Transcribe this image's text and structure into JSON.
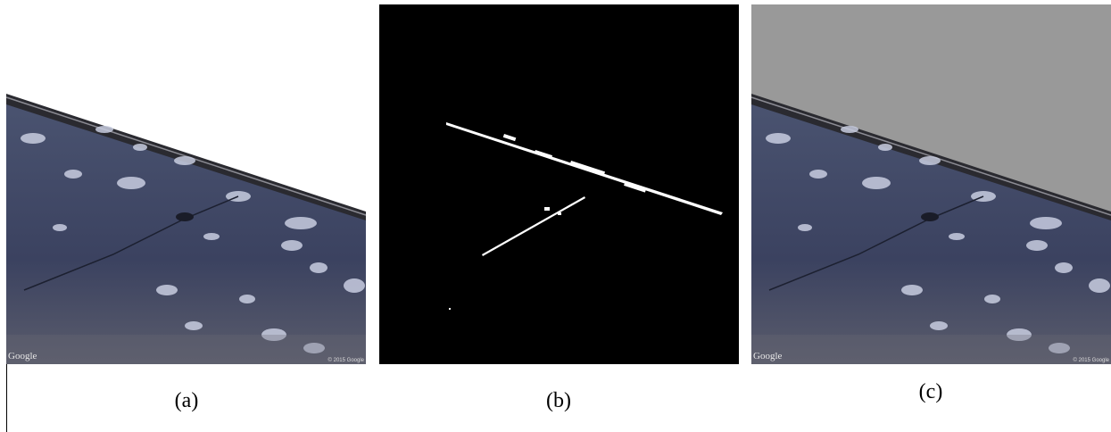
{
  "panels": [
    {
      "label": "(a)",
      "watermark": "Google",
      "copyright": "© 2015 Google"
    },
    {
      "label": "(b)"
    },
    {
      "label": "(c)",
      "watermark": "Google",
      "copyright": "© 2015 Google"
    }
  ]
}
